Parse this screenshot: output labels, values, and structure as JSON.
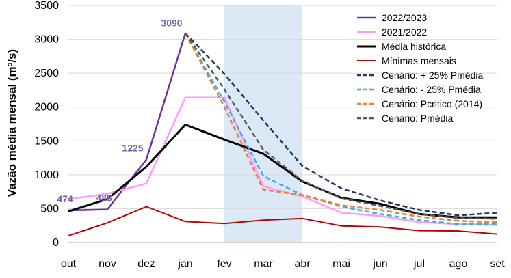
{
  "chart_data": {
    "type": "line",
    "title": "",
    "xlabel": "",
    "ylabel": "Vazão média mensal (m³/s)",
    "ylim": [
      0,
      3500
    ],
    "yticks": [
      0,
      500,
      1000,
      1500,
      2000,
      2500,
      3000,
      3500
    ],
    "categories": [
      "out",
      "nov",
      "dez",
      "jan",
      "fev",
      "mar",
      "abr",
      "mai",
      "jun",
      "jul",
      "ago",
      "set"
    ],
    "shaded_region": {
      "from": "fev",
      "to": "abr",
      "color": "#dbe8f6"
    },
    "series": [
      {
        "name": "2022/2023",
        "color": "#7030a0",
        "style": "solid",
        "width": 2.5,
        "values": [
          474,
          488,
          1225,
          3090,
          null,
          null,
          null,
          null,
          null,
          null,
          null,
          null
        ]
      },
      {
        "name": "2021/2022",
        "color": "#ff99ff",
        "style": "solid",
        "width": 2.5,
        "values": [
          640,
          720,
          870,
          2140,
          2140,
          830,
          680,
          440,
          390,
          300,
          270,
          260
        ]
      },
      {
        "name": "Média histórica",
        "color": "#000000",
        "style": "solid",
        "width": 3,
        "values": [
          460,
          640,
          1120,
          1740,
          1520,
          1310,
          900,
          660,
          570,
          420,
          370,
          370
        ]
      },
      {
        "name": "Mínimas mensais",
        "color": "#c00000",
        "style": "solid",
        "width": 2,
        "values": [
          100,
          290,
          530,
          310,
          280,
          330,
          355,
          245,
          230,
          175,
          170,
          125
        ]
      },
      {
        "name": "Cenário: + 25% Pmédia",
        "color": "#1f3864",
        "style": "dashed",
        "width": 2.5,
        "values": [
          null,
          null,
          null,
          3090,
          2490,
          1800,
          1130,
          800,
          620,
          480,
          400,
          440
        ]
      },
      {
        "name": "Cenário: - 25% Pmédia",
        "color": "#31b4d9",
        "style": "dashed",
        "width": 2.5,
        "values": [
          null,
          null,
          null,
          3090,
          2080,
          980,
          700,
          530,
          420,
          330,
          270,
          270
        ]
      },
      {
        "name": "Cenário: Pcritico (2014)",
        "color": "#ed7d31",
        "style": "dashed",
        "width": 2.5,
        "values": [
          null,
          null,
          null,
          3090,
          2000,
          780,
          700,
          550,
          480,
          380,
          320,
          300
        ]
      },
      {
        "name": "Cenário: Pmédia",
        "color": "#595959",
        "style": "dashed",
        "width": 2.5,
        "values": [
          null,
          null,
          null,
          3090,
          2260,
          1370,
          910,
          650,
          540,
          420,
          360,
          350
        ]
      }
    ],
    "annotations": [
      {
        "text": "474",
        "category": "out",
        "value": 474
      },
      {
        "text": "488",
        "category": "nov",
        "value": 488
      },
      {
        "text": "1225",
        "category": "dez",
        "value": 1225
      },
      {
        "text": "3090",
        "category": "jan",
        "value": 3090
      }
    ],
    "legend_position": "top-right"
  }
}
